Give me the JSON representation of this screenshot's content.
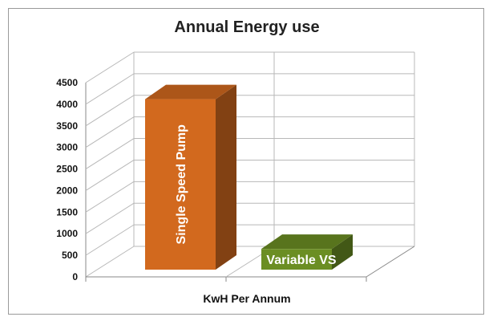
{
  "chart_data": {
    "type": "bar",
    "title": "Annual Energy use",
    "xlabel": "KwH Per Annum",
    "ylabel": "",
    "ylim": [
      0,
      4500
    ],
    "yticks": [
      0,
      500,
      1000,
      1500,
      2000,
      2500,
      3000,
      3500,
      4000,
      4500
    ],
    "categories": [
      "Single Speed Pump",
      "Variable VS"
    ],
    "values": [
      3950,
      480
    ],
    "bar_colors": [
      "#d2691e",
      "#6b8e23"
    ],
    "legend": "none",
    "grid": true
  }
}
